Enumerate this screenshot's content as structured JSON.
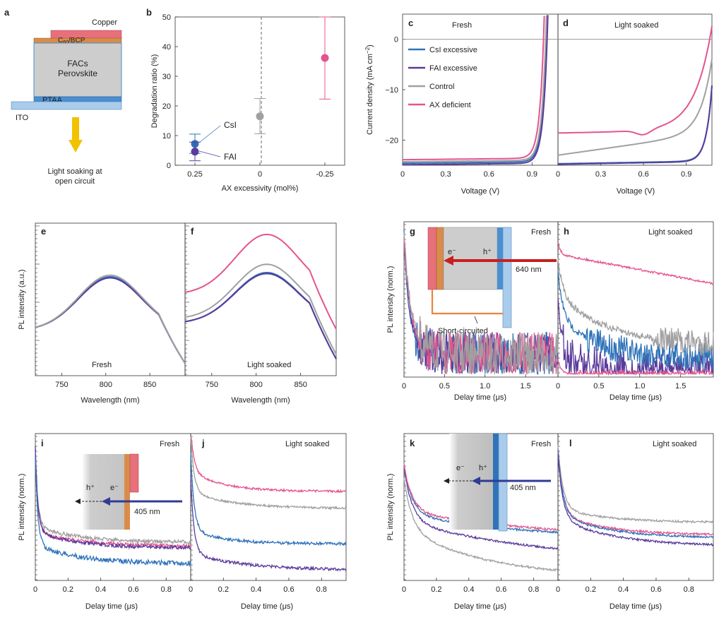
{
  "colors": {
    "csi": "#2f73b9",
    "fai": "#5a3b9b",
    "control": "#a0a0a0",
    "ax": "#e4548f",
    "red": "#c8201e",
    "arrow": "#303b96",
    "yellow": "#f2c200",
    "copper": "#e8707a",
    "c60": "#d98c4a",
    "ptaa": "#4a8fd0",
    "ito": "#a9ccec",
    "perov": "#cdcdcd"
  },
  "panel_a": {
    "letter": "a",
    "copper": "Copper",
    "c60_main": "C",
    "c60_sub": "60",
    "c60_rest": "/BCP",
    "perov_line1": "FACs",
    "perov_line2": "Perovskite",
    "ptaa": "PTAA",
    "ito": "ITO",
    "caption_line1": "Light soaking at",
    "caption_line2": "open circuit"
  },
  "chart_data": [
    {
      "panel": "b",
      "type": "scatter",
      "ylabel": "Degradation ratio (%)",
      "xlabel": "AX excessivity (mol%)",
      "xticks": [
        "0.25",
        "0",
        "-0.25"
      ],
      "yticks": [
        "0",
        "10",
        "20",
        "30",
        "40",
        "50"
      ],
      "ylim": [
        0,
        50
      ],
      "annotations": [
        "CsI",
        "FAI"
      ],
      "points": [
        {
          "name": "CsI",
          "x": 0.25,
          "y": 7.2,
          "ylo": 4.0,
          "yhi": 10.5
        },
        {
          "name": "FAI",
          "x": 0.25,
          "y": 4.6,
          "ylo": 1.5,
          "yhi": 7.8
        },
        {
          "name": "Control",
          "x": 0,
          "y": 16.5,
          "ylo": 10.6,
          "yhi": 22.5
        },
        {
          "name": "AX deficient",
          "x": -0.25,
          "y": 36.2,
          "ylo": 22.3,
          "yhi": 50
        }
      ]
    },
    {
      "panel": "c/d",
      "type": "line",
      "ylabel": "Current density (mA cm⁻²)",
      "ylabel_main": "Current density (mA cm",
      "ylabel_sup": "−2",
      "ylabel_end": ")",
      "xlabel": "Voltage (V)",
      "xticks": [
        "0",
        "0.3",
        "0.6",
        "0.9"
      ],
      "yticks": [
        "0",
        "−10",
        "−20"
      ],
      "ylim": [
        -25,
        5
      ],
      "xlim": [
        0,
        1.08
      ],
      "legend": [
        "CsI excessive",
        "FAI excessive",
        "Control",
        "AX deficient"
      ],
      "titles": [
        "Fresh",
        "Light soaked"
      ],
      "series_fresh": [
        {
          "name": "CsI excessive",
          "jsc": -24.6,
          "voc": 1.0
        },
        {
          "name": "FAI excessive",
          "jsc": -24.9,
          "voc": 1.005
        },
        {
          "name": "Control",
          "jsc": -24.3,
          "voc": 0.995
        },
        {
          "name": "AX deficient",
          "jsc": -23.9,
          "voc": 0.98
        }
      ],
      "series_soaked": [
        {
          "name": "CsI excessive",
          "jsc": -24.7,
          "voc": 1.1
        },
        {
          "name": "FAI excessive",
          "jsc": -24.8,
          "voc": 1.1
        },
        {
          "name": "Control",
          "jsc": -23.0,
          "voc": 1.1
        },
        {
          "name": "AX deficient",
          "jsc": -18.4,
          "voc": 1.07
        }
      ]
    },
    {
      "panel": "e/f",
      "type": "line",
      "ylabel": "PL intensity (a.u.)",
      "xlabel": "Wavelength (nm)",
      "xticks": [
        "750",
        "800",
        "850"
      ],
      "xlim": [
        720,
        890
      ],
      "titles": [
        "Fresh",
        "Light soaked"
      ],
      "peak_relative_fresh": {
        "CsI excessive": 1.0,
        "FAI excessive": 0.98,
        "Control": 1.03
      },
      "peak_relative_soaked": {
        "CsI excessive": 1.0,
        "FAI excessive": 0.98,
        "Control": 1.08,
        "AX deficient": 1.38
      }
    },
    {
      "panel": "g/h",
      "type": "line",
      "ylabel": "PL intensity (norm.)",
      "xlabel": "Delay time (μs)",
      "xticks": [
        "0",
        "0.5",
        "1.0",
        "1.5"
      ],
      "xlim": [
        0,
        1.9
      ],
      "titles": [
        "Fresh",
        "Light soaked"
      ],
      "inset": {
        "electron": "e⁻",
        "hole": "h⁺",
        "wavelength": "640 nm",
        "label": "Short-circuited"
      }
    },
    {
      "panel": "i/j",
      "type": "line",
      "ylabel": "PL intensity (norm.)",
      "xlabel": "Delay time (μs)",
      "xticks": [
        "0",
        "0.2",
        "0.4",
        "0.6",
        "0.8"
      ],
      "xlim": [
        0,
        0.95
      ],
      "titles": [
        "Fresh",
        "Light soaked"
      ],
      "inset": {
        "electron": "e⁻",
        "hole": "h⁺",
        "wavelength": "405 nm"
      }
    },
    {
      "panel": "k/l",
      "type": "line",
      "ylabel": "PL intensity (norm.)",
      "xlabel": "Delay time (μs)",
      "xticks": [
        "0",
        "0.2",
        "0.4",
        "0.6",
        "0.8"
      ],
      "xlim": [
        0,
        0.95
      ],
      "titles": [
        "Fresh",
        "Light soaked"
      ],
      "inset": {
        "electron": "e⁻",
        "hole": "h⁺",
        "wavelength": "405 nm"
      }
    }
  ],
  "letters": {
    "b": "b",
    "c": "c",
    "d": "d",
    "e": "e",
    "f": "f",
    "g": "g",
    "h": "h",
    "i": "i",
    "j": "j",
    "k": "k",
    "l": "l"
  }
}
